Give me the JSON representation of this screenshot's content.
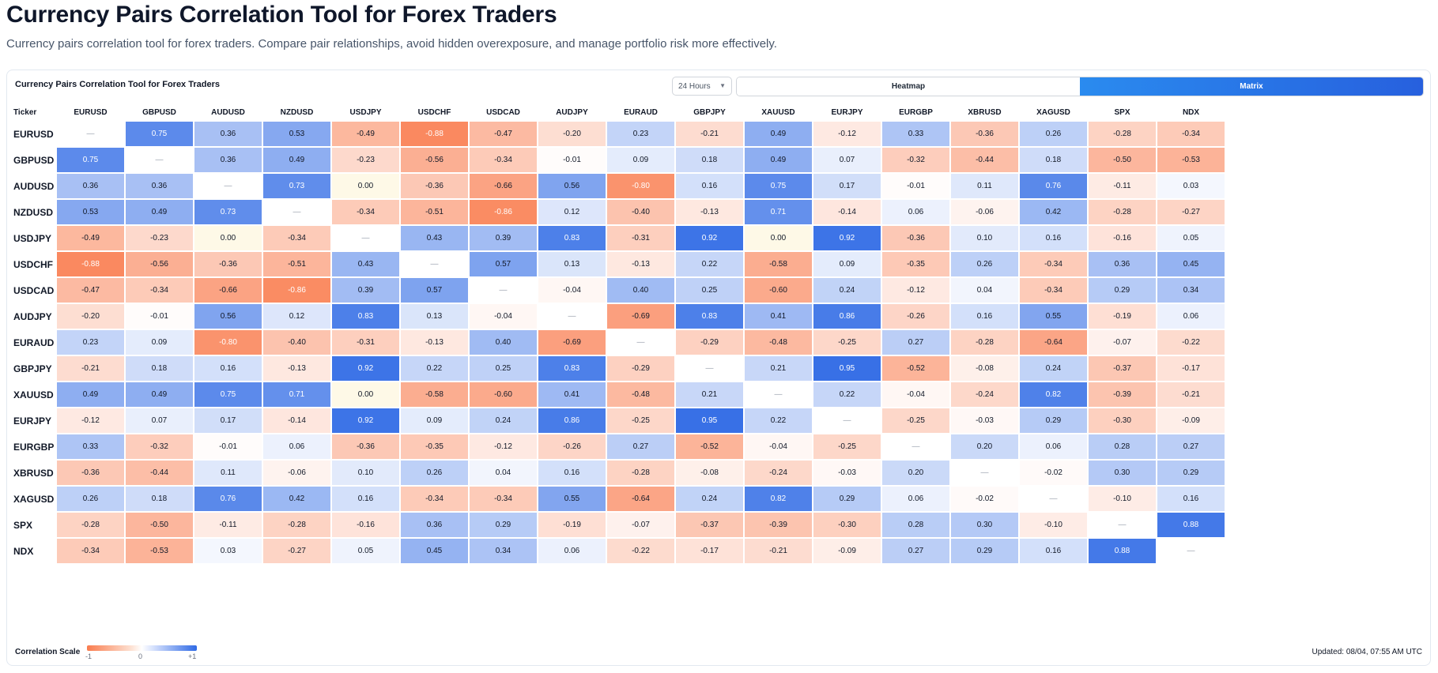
{
  "header": {
    "title": "Currency Pairs Correlation Tool for Forex Traders",
    "subtitle": "Currency pairs correlation tool for forex traders. Compare pair relationships, avoid hidden overexposure, and manage portfolio risk more effectively."
  },
  "card": {
    "title": "Currency Pairs Correlation Tool for Forex Traders",
    "timeframe": "24 Hours",
    "views": [
      {
        "label": "Heatmap",
        "active": false
      },
      {
        "label": "Matrix",
        "active": true
      }
    ],
    "scale_label": "Correlation Scale",
    "scale_min": "-1",
    "scale_mid": "0",
    "scale_max": "+1",
    "updated": "Updated: 08/04, 07:55 AM UTC",
    "colors": {
      "negative": "#f97c4e",
      "neutral_low": "#ffffff",
      "neutral_zero": "#fef9e7",
      "positive": "#2f6ae5"
    }
  },
  "matrix": {
    "corner_label": "Ticker",
    "diagonal": "—",
    "tickers": [
      "EURUSD",
      "GBPUSD",
      "AUDUSD",
      "NZDUSD",
      "USDJPY",
      "USDCHF",
      "USDCAD",
      "AUDJPY",
      "EURAUD",
      "GBPJPY",
      "XAUUSD",
      "EURJPY",
      "EURGBP",
      "XBRUSD",
      "XAGUSD",
      "SPX",
      "NDX"
    ],
    "values": [
      [
        null,
        0.75,
        0.36,
        0.53,
        -0.49,
        -0.88,
        -0.47,
        -0.2,
        0.23,
        -0.21,
        0.49,
        -0.12,
        0.33,
        -0.36,
        0.26,
        -0.28,
        -0.34
      ],
      [
        0.75,
        null,
        0.36,
        0.49,
        -0.23,
        -0.56,
        -0.34,
        -0.01,
        0.09,
        0.18,
        0.49,
        0.07,
        -0.32,
        -0.44,
        0.18,
        -0.5,
        -0.53
      ],
      [
        0.36,
        0.36,
        null,
        0.73,
        0.0,
        -0.36,
        -0.66,
        0.56,
        -0.8,
        0.16,
        0.75,
        0.17,
        -0.01,
        0.11,
        0.76,
        -0.11,
        0.03
      ],
      [
        0.53,
        0.49,
        0.73,
        null,
        -0.34,
        -0.51,
        -0.86,
        0.12,
        -0.4,
        -0.13,
        0.71,
        -0.14,
        0.06,
        -0.06,
        0.42,
        -0.28,
        -0.27
      ],
      [
        -0.49,
        -0.23,
        0.0,
        -0.34,
        null,
        0.43,
        0.39,
        0.83,
        -0.31,
        0.92,
        0.0,
        0.92,
        -0.36,
        0.1,
        0.16,
        -0.16,
        0.05
      ],
      [
        -0.88,
        -0.56,
        -0.36,
        -0.51,
        0.43,
        null,
        0.57,
        0.13,
        -0.13,
        0.22,
        -0.58,
        0.09,
        -0.35,
        0.26,
        -0.34,
        0.36,
        0.45
      ],
      [
        -0.47,
        -0.34,
        -0.66,
        -0.86,
        0.39,
        0.57,
        null,
        -0.04,
        0.4,
        0.25,
        -0.6,
        0.24,
        -0.12,
        0.04,
        -0.34,
        0.29,
        0.34
      ],
      [
        -0.2,
        -0.01,
        0.56,
        0.12,
        0.83,
        0.13,
        -0.04,
        null,
        -0.69,
        0.83,
        0.41,
        0.86,
        -0.26,
        0.16,
        0.55,
        -0.19,
        0.06
      ],
      [
        0.23,
        0.09,
        -0.8,
        -0.4,
        -0.31,
        -0.13,
        0.4,
        -0.69,
        null,
        -0.29,
        -0.48,
        -0.25,
        0.27,
        -0.28,
        -0.64,
        -0.07,
        -0.22
      ],
      [
        -0.21,
        0.18,
        0.16,
        -0.13,
        0.92,
        0.22,
        0.25,
        0.83,
        -0.29,
        null,
        0.21,
        0.95,
        -0.52,
        -0.08,
        0.24,
        -0.37,
        -0.17
      ],
      [
        0.49,
        0.49,
        0.75,
        0.71,
        0.0,
        -0.58,
        -0.6,
        0.41,
        -0.48,
        0.21,
        null,
        0.22,
        -0.04,
        -0.24,
        0.82,
        -0.39,
        -0.21
      ],
      [
        -0.12,
        0.07,
        0.17,
        -0.14,
        0.92,
        0.09,
        0.24,
        0.86,
        -0.25,
        0.95,
        0.22,
        null,
        -0.25,
        -0.03,
        0.29,
        -0.3,
        -0.09
      ],
      [
        0.33,
        -0.32,
        -0.01,
        0.06,
        -0.36,
        -0.35,
        -0.12,
        -0.26,
        0.27,
        -0.52,
        -0.04,
        -0.25,
        null,
        0.2,
        0.06,
        0.28,
        0.27
      ],
      [
        -0.36,
        -0.44,
        0.11,
        -0.06,
        0.1,
        0.26,
        0.04,
        0.16,
        -0.28,
        -0.08,
        -0.24,
        -0.03,
        0.2,
        null,
        -0.02,
        0.3,
        0.29
      ],
      [
        0.26,
        0.18,
        0.76,
        0.42,
        0.16,
        -0.34,
        -0.34,
        0.55,
        -0.64,
        0.24,
        0.82,
        0.29,
        0.06,
        -0.02,
        null,
        -0.1,
        0.16
      ],
      [
        -0.28,
        -0.5,
        -0.11,
        -0.28,
        -0.16,
        0.36,
        0.29,
        -0.19,
        -0.07,
        -0.37,
        -0.39,
        -0.3,
        0.28,
        0.3,
        -0.1,
        null,
        0.88
      ],
      [
        -0.34,
        -0.53,
        0.03,
        -0.27,
        0.05,
        0.45,
        0.34,
        0.06,
        -0.22,
        -0.17,
        -0.21,
        -0.09,
        0.27,
        0.29,
        0.16,
        0.88,
        null
      ]
    ]
  }
}
